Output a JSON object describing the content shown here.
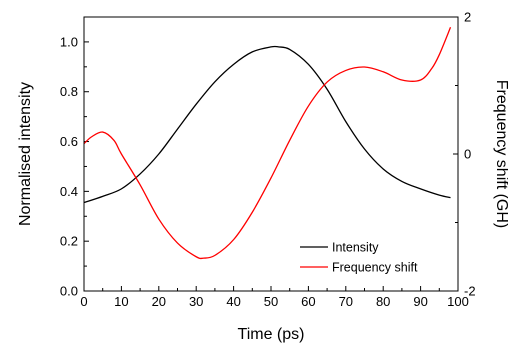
{
  "chart_data": {
    "type": "line",
    "title": "",
    "xlabel": "Time (ps)",
    "ylabel": "Normalised intensity",
    "y2label": "Frequency shift (GH)",
    "xlim": [
      0,
      100
    ],
    "ylim": [
      0,
      1.1
    ],
    "y2lim": [
      -2,
      2
    ],
    "xticks": [
      "0",
      "10",
      "20",
      "30",
      "40",
      "50",
      "60",
      "70",
      "80",
      "90",
      "100"
    ],
    "yticks": [
      "0.0",
      "0.2",
      "0.4",
      "0.6",
      "0.8",
      "1.0"
    ],
    "y2ticks": [
      "-2",
      "0",
      "2"
    ],
    "grid": false,
    "legend_position": "bottom-right",
    "series": [
      {
        "name": "Intensity",
        "axis": "left",
        "color": "#000000",
        "x": [
          0,
          5,
          10,
          15,
          20,
          25,
          30,
          35,
          40,
          45,
          50,
          52,
          55,
          60,
          65,
          70,
          75,
          80,
          85,
          90,
          95,
          98
        ],
        "y": [
          0.355,
          0.38,
          0.41,
          0.47,
          0.55,
          0.65,
          0.75,
          0.84,
          0.91,
          0.96,
          0.98,
          0.98,
          0.97,
          0.91,
          0.81,
          0.68,
          0.57,
          0.49,
          0.44,
          0.41,
          0.385,
          0.375
        ]
      },
      {
        "name": "Frequency shift",
        "axis": "right",
        "color": "#ff0000",
        "x": [
          0,
          2,
          5,
          8,
          10,
          15,
          20,
          25,
          30,
          32,
          35,
          40,
          45,
          50,
          55,
          60,
          65,
          70,
          75,
          80,
          85,
          90,
          93,
          95,
          98
        ],
        "y": [
          0.15,
          0.25,
          0.32,
          0.2,
          0.0,
          -0.45,
          -0.95,
          -1.3,
          -1.5,
          -1.52,
          -1.48,
          -1.25,
          -0.85,
          -0.35,
          0.2,
          0.7,
          1.05,
          1.22,
          1.27,
          1.2,
          1.08,
          1.08,
          1.25,
          1.45,
          1.85
        ]
      }
    ]
  }
}
